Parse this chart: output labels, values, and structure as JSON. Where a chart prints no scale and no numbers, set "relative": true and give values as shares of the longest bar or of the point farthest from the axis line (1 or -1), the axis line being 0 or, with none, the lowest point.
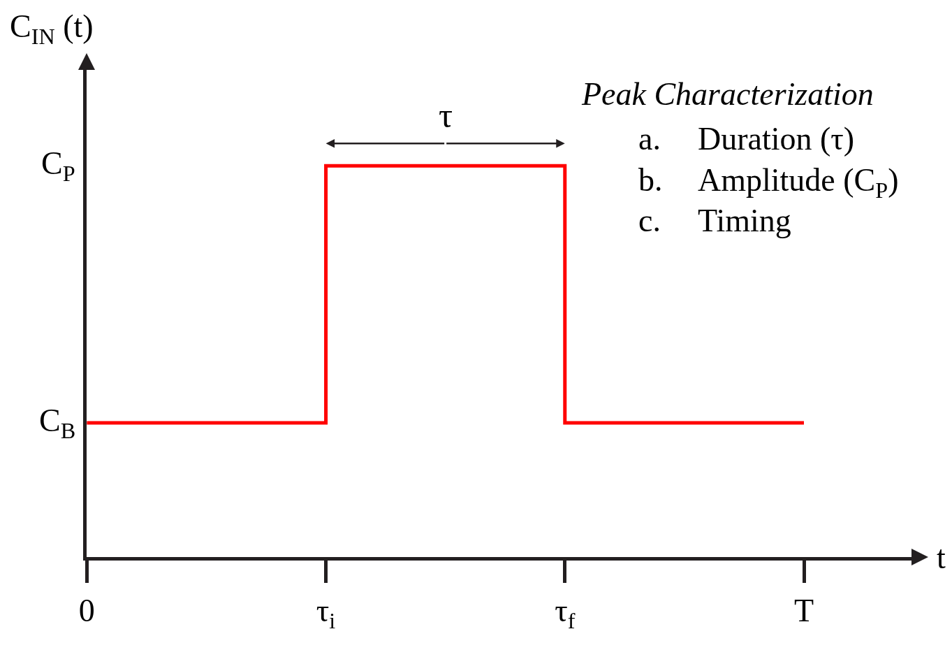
{
  "chart_data": {
    "type": "step",
    "relative": true,
    "title": "Peak Characterization",
    "ylabel": "C$_{IN}$ (t)",
    "xlabel": "t",
    "categories": [
      "0",
      "τ$_{i}$",
      "τ$_{f}$",
      "T"
    ],
    "series": [
      {
        "color": "#ff0000",
        "values": [
          0.343,
          1,
          0.343,
          0.343
        ]
      }
    ],
    "annotations": [
      "C$_{B}$",
      "C$_{P}$",
      "τ",
      "a. Duration (τ)",
      "b. Amplitude (C$_{P}$)",
      "c. Timing"
    ],
    "marker": "none",
    "line_style": "solid"
  }
}
